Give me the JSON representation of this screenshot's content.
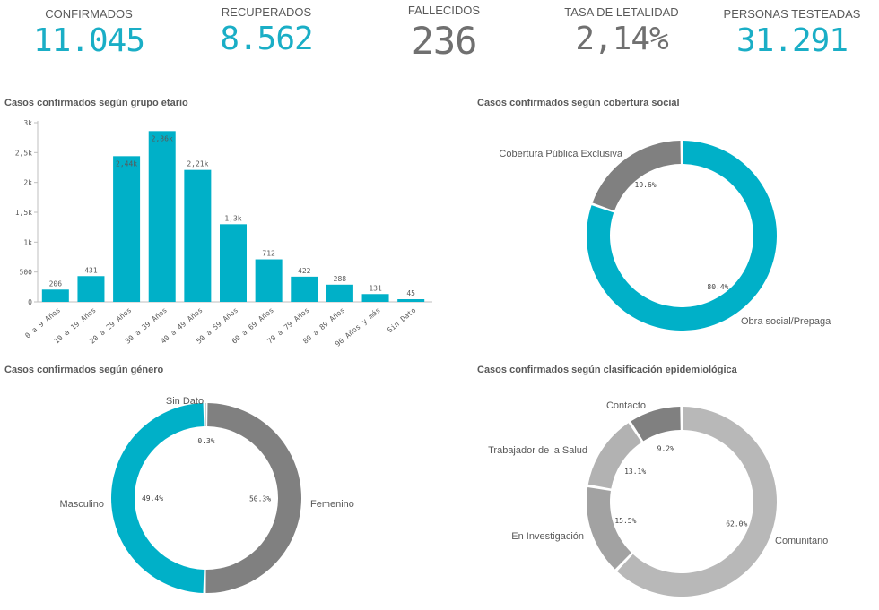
{
  "kpis": [
    {
      "label": "CONFIRMADOS",
      "value": "11.045",
      "color": "#1aaec6"
    },
    {
      "label": "RECUPERADOS",
      "value": "8.562",
      "color": "#1aaec6"
    },
    {
      "label": "FALLECIDOS",
      "value": "236",
      "color": "#707070"
    },
    {
      "label": "TASA DE LETALIDAD",
      "value": "2,14%",
      "color": "#707070"
    },
    {
      "label": "PERSONAS TESTEADAS",
      "value": "31.291",
      "color": "#1aaec6"
    }
  ],
  "chart_data": [
    {
      "type": "bar",
      "title": "Casos confirmados según grupo etario",
      "categories": [
        "0 a 9 Años",
        "10 a 19 Años",
        "20 a 29 Años",
        "30 a 39 Años",
        "40 a 49 Años",
        "50 a 59 Años",
        "60 a 69 Años",
        "70 a 79 Años",
        "80 a 89 Años",
        "90 Años y más",
        "Sin Dato"
      ],
      "values": [
        206,
        431,
        2440,
        2860,
        2210,
        1300,
        712,
        422,
        288,
        131,
        45
      ],
      "data_labels": [
        "206",
        "431",
        "2,44k",
        "2,86k",
        "2,21k",
        "1,3k",
        "712",
        "422",
        "288",
        "131",
        "45"
      ],
      "ylim": [
        0,
        3000
      ],
      "yticks": [
        0,
        500,
        1000,
        1500,
        2000,
        2500,
        3000
      ],
      "ytick_labels": [
        "0",
        "500",
        "1k",
        "1,5k",
        "2k",
        "2,5k",
        "3k"
      ],
      "color": "#00b0c8",
      "grid": false
    },
    {
      "type": "pie",
      "title": "Casos confirmados según cobertura social",
      "slices": [
        {
          "label": "Obra social/Prepaga",
          "value": 80.4,
          "pct_label": "80.4%",
          "color": "#00b0c8"
        },
        {
          "label": "Cobertura Pública Exclusiva",
          "value": 19.6,
          "pct_label": "19.6%",
          "color": "#808080"
        }
      ]
    },
    {
      "type": "pie",
      "title": "Casos confirmados según género",
      "slices": [
        {
          "label": "Femenino",
          "value": 50.3,
          "pct_label": "50.3%",
          "color": "#808080"
        },
        {
          "label": "Masculino",
          "value": 49.4,
          "pct_label": "49.4%",
          "color": "#00b0c8"
        },
        {
          "label": "Sin Dato",
          "value": 0.3,
          "pct_label": "0.3%",
          "color": "#cccccc"
        }
      ]
    },
    {
      "type": "pie",
      "title": "Casos confirmados según clasificación epidemiológica",
      "slices": [
        {
          "label": "Comunitario",
          "value": 62.0,
          "pct_label": "62.0%",
          "color": "#b8b8b8"
        },
        {
          "label": "En Investigación",
          "value": 15.5,
          "pct_label": "15.5%",
          "color": "#a2a2a2"
        },
        {
          "label": "Trabajador de la Salud",
          "value": 13.1,
          "pct_label": "13.1%",
          "color": "#b2b2b2"
        },
        {
          "label": "Contacto",
          "value": 9.2,
          "pct_label": "9.2%",
          "color": "#808080"
        }
      ]
    }
  ]
}
